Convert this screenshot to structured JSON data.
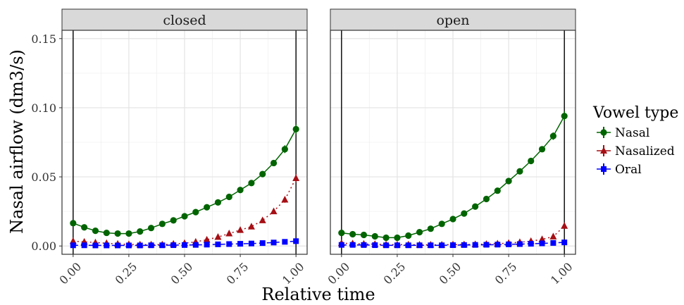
{
  "chart_data": {
    "type": "line",
    "xlabel": "Relative time",
    "ylabel": "Nasal airflow (dm3/s)",
    "xlim": [
      -0.05,
      1.05
    ],
    "ylim": [
      -0.006,
      0.156
    ],
    "x_ticks": [
      0,
      0.25,
      0.5,
      0.75,
      1
    ],
    "x_tick_labels": [
      "0.00",
      "0.25",
      "0.50",
      "0.75",
      "1.00"
    ],
    "y_ticks": [
      0,
      0.05,
      0.1,
      0.15
    ],
    "y_tick_labels": [
      "0.00",
      "0.05",
      "0.10",
      "0.15"
    ],
    "grid": true,
    "vertical_reference_lines": [
      0,
      1
    ],
    "legend": {
      "title": "Vowel type",
      "position": "right",
      "entries": [
        {
          "label": "Nasal",
          "color": "#006400",
          "marker": "circle",
          "linestyle": "solid"
        },
        {
          "label": "Nasalized",
          "color": "#a50f15",
          "marker": "triangle",
          "linestyle": "dotted"
        },
        {
          "label": "Oral",
          "color": "#0000ff",
          "marker": "square",
          "linestyle": "dashed"
        }
      ]
    },
    "x": [
      0,
      0.05,
      0.1,
      0.15,
      0.2,
      0.25,
      0.3,
      0.35,
      0.4,
      0.45,
      0.5,
      0.55,
      0.6,
      0.65,
      0.7,
      0.75,
      0.8,
      0.85,
      0.9,
      0.95,
      1
    ],
    "panels": [
      {
        "name": "closed",
        "series": [
          {
            "name": "Nasal",
            "values": [
              0.0165,
              0.0135,
              0.011,
              0.0095,
              0.009,
              0.009,
              0.0105,
              0.013,
              0.016,
              0.0185,
              0.0215,
              0.0245,
              0.028,
              0.0315,
              0.0355,
              0.0405,
              0.0455,
              0.052,
              0.06,
              0.07,
              0.0845
            ],
            "error": [
              0.0015,
              0.0008,
              0.0006,
              0.0005,
              0.0005,
              0.0005,
              0.0005,
              0.0005,
              0.0006,
              0.0006,
              0.0007,
              0.0007,
              0.0008,
              0.0009,
              0.001,
              0.0012,
              0.0014,
              0.0018,
              0.0022,
              0.0028,
              0.0035
            ]
          },
          {
            "name": "Nasalized",
            "values": [
              0.0035,
              0.003,
              0.0025,
              0.002,
              0.0015,
              0.0012,
              0.001,
              0.001,
              0.001,
              0.0015,
              0.002,
              0.003,
              0.0045,
              0.0065,
              0.009,
              0.0115,
              0.014,
              0.0185,
              0.025,
              0.0335,
              0.049
            ],
            "error": [
              0.0012,
              0.0008,
              0.0006,
              0.0005,
              0.0004,
              0.0004,
              0.0004,
              0.0004,
              0.0004,
              0.0004,
              0.0005,
              0.0005,
              0.0006,
              0.0007,
              0.0008,
              0.001,
              0.0012,
              0.0015,
              0.0018,
              0.0022,
              0.003
            ]
          },
          {
            "name": "Oral",
            "values": [
              0.0005,
              0.0005,
              0.0004,
              0.0004,
              0.0004,
              0.0004,
              0.0004,
              0.0005,
              0.0005,
              0.0006,
              0.0007,
              0.0008,
              0.001,
              0.0012,
              0.0014,
              0.0016,
              0.0018,
              0.0021,
              0.0025,
              0.003,
              0.0035
            ],
            "error": [
              0.0004,
              0.0003,
              0.0003,
              0.0003,
              0.0003,
              0.0003,
              0.0003,
              0.0003,
              0.0003,
              0.0003,
              0.0003,
              0.0003,
              0.0003,
              0.0003,
              0.0003,
              0.0003,
              0.0003,
              0.0003,
              0.0004,
              0.0004,
              0.0005
            ]
          }
        ]
      },
      {
        "name": "open",
        "series": [
          {
            "name": "Nasal",
            "values": [
              0.0095,
              0.0085,
              0.008,
              0.007,
              0.006,
              0.006,
              0.0075,
              0.01,
              0.0125,
              0.016,
              0.0195,
              0.0235,
              0.0285,
              0.034,
              0.04,
              0.047,
              0.054,
              0.0615,
              0.07,
              0.0795,
              0.094
            ],
            "error": [
              0.0012,
              0.0007,
              0.0006,
              0.0005,
              0.0005,
              0.0005,
              0.0005,
              0.0005,
              0.0006,
              0.0006,
              0.0007,
              0.0008,
              0.0009,
              0.001,
              0.0012,
              0.0014,
              0.0016,
              0.0019,
              0.0022,
              0.0027,
              0.0035
            ]
          },
          {
            "name": "Nasalized",
            "values": [
              0.002,
              0.0018,
              0.0015,
              0.0013,
              0.0011,
              0.001,
              0.001,
              0.0009,
              0.0009,
              0.0009,
              0.001,
              0.0011,
              0.0012,
              0.0014,
              0.0017,
              0.0021,
              0.0027,
              0.0035,
              0.0048,
              0.0068,
              0.0145
            ],
            "error": [
              0.0006,
              0.0005,
              0.0004,
              0.0004,
              0.0004,
              0.0004,
              0.0004,
              0.0004,
              0.0004,
              0.0004,
              0.0004,
              0.0004,
              0.0004,
              0.0004,
              0.0005,
              0.0005,
              0.0006,
              0.0007,
              0.0008,
              0.001,
              0.0015
            ]
          },
          {
            "name": "Oral",
            "values": [
              0.0008,
              0.0008,
              0.0007,
              0.0006,
              0.0005,
              0.0005,
              0.0005,
              0.0005,
              0.0005,
              0.0005,
              0.0006,
              0.0007,
              0.0008,
              0.0009,
              0.001,
              0.0012,
              0.0014,
              0.0016,
              0.0019,
              0.0022,
              0.0026
            ],
            "error": [
              0.0003,
              0.0003,
              0.0003,
              0.0003,
              0.0003,
              0.0003,
              0.0003,
              0.0003,
              0.0003,
              0.0003,
              0.0003,
              0.0003,
              0.0003,
              0.0003,
              0.0003,
              0.0003,
              0.0003,
              0.0003,
              0.0004,
              0.0004,
              0.0004
            ]
          }
        ]
      }
    ]
  }
}
